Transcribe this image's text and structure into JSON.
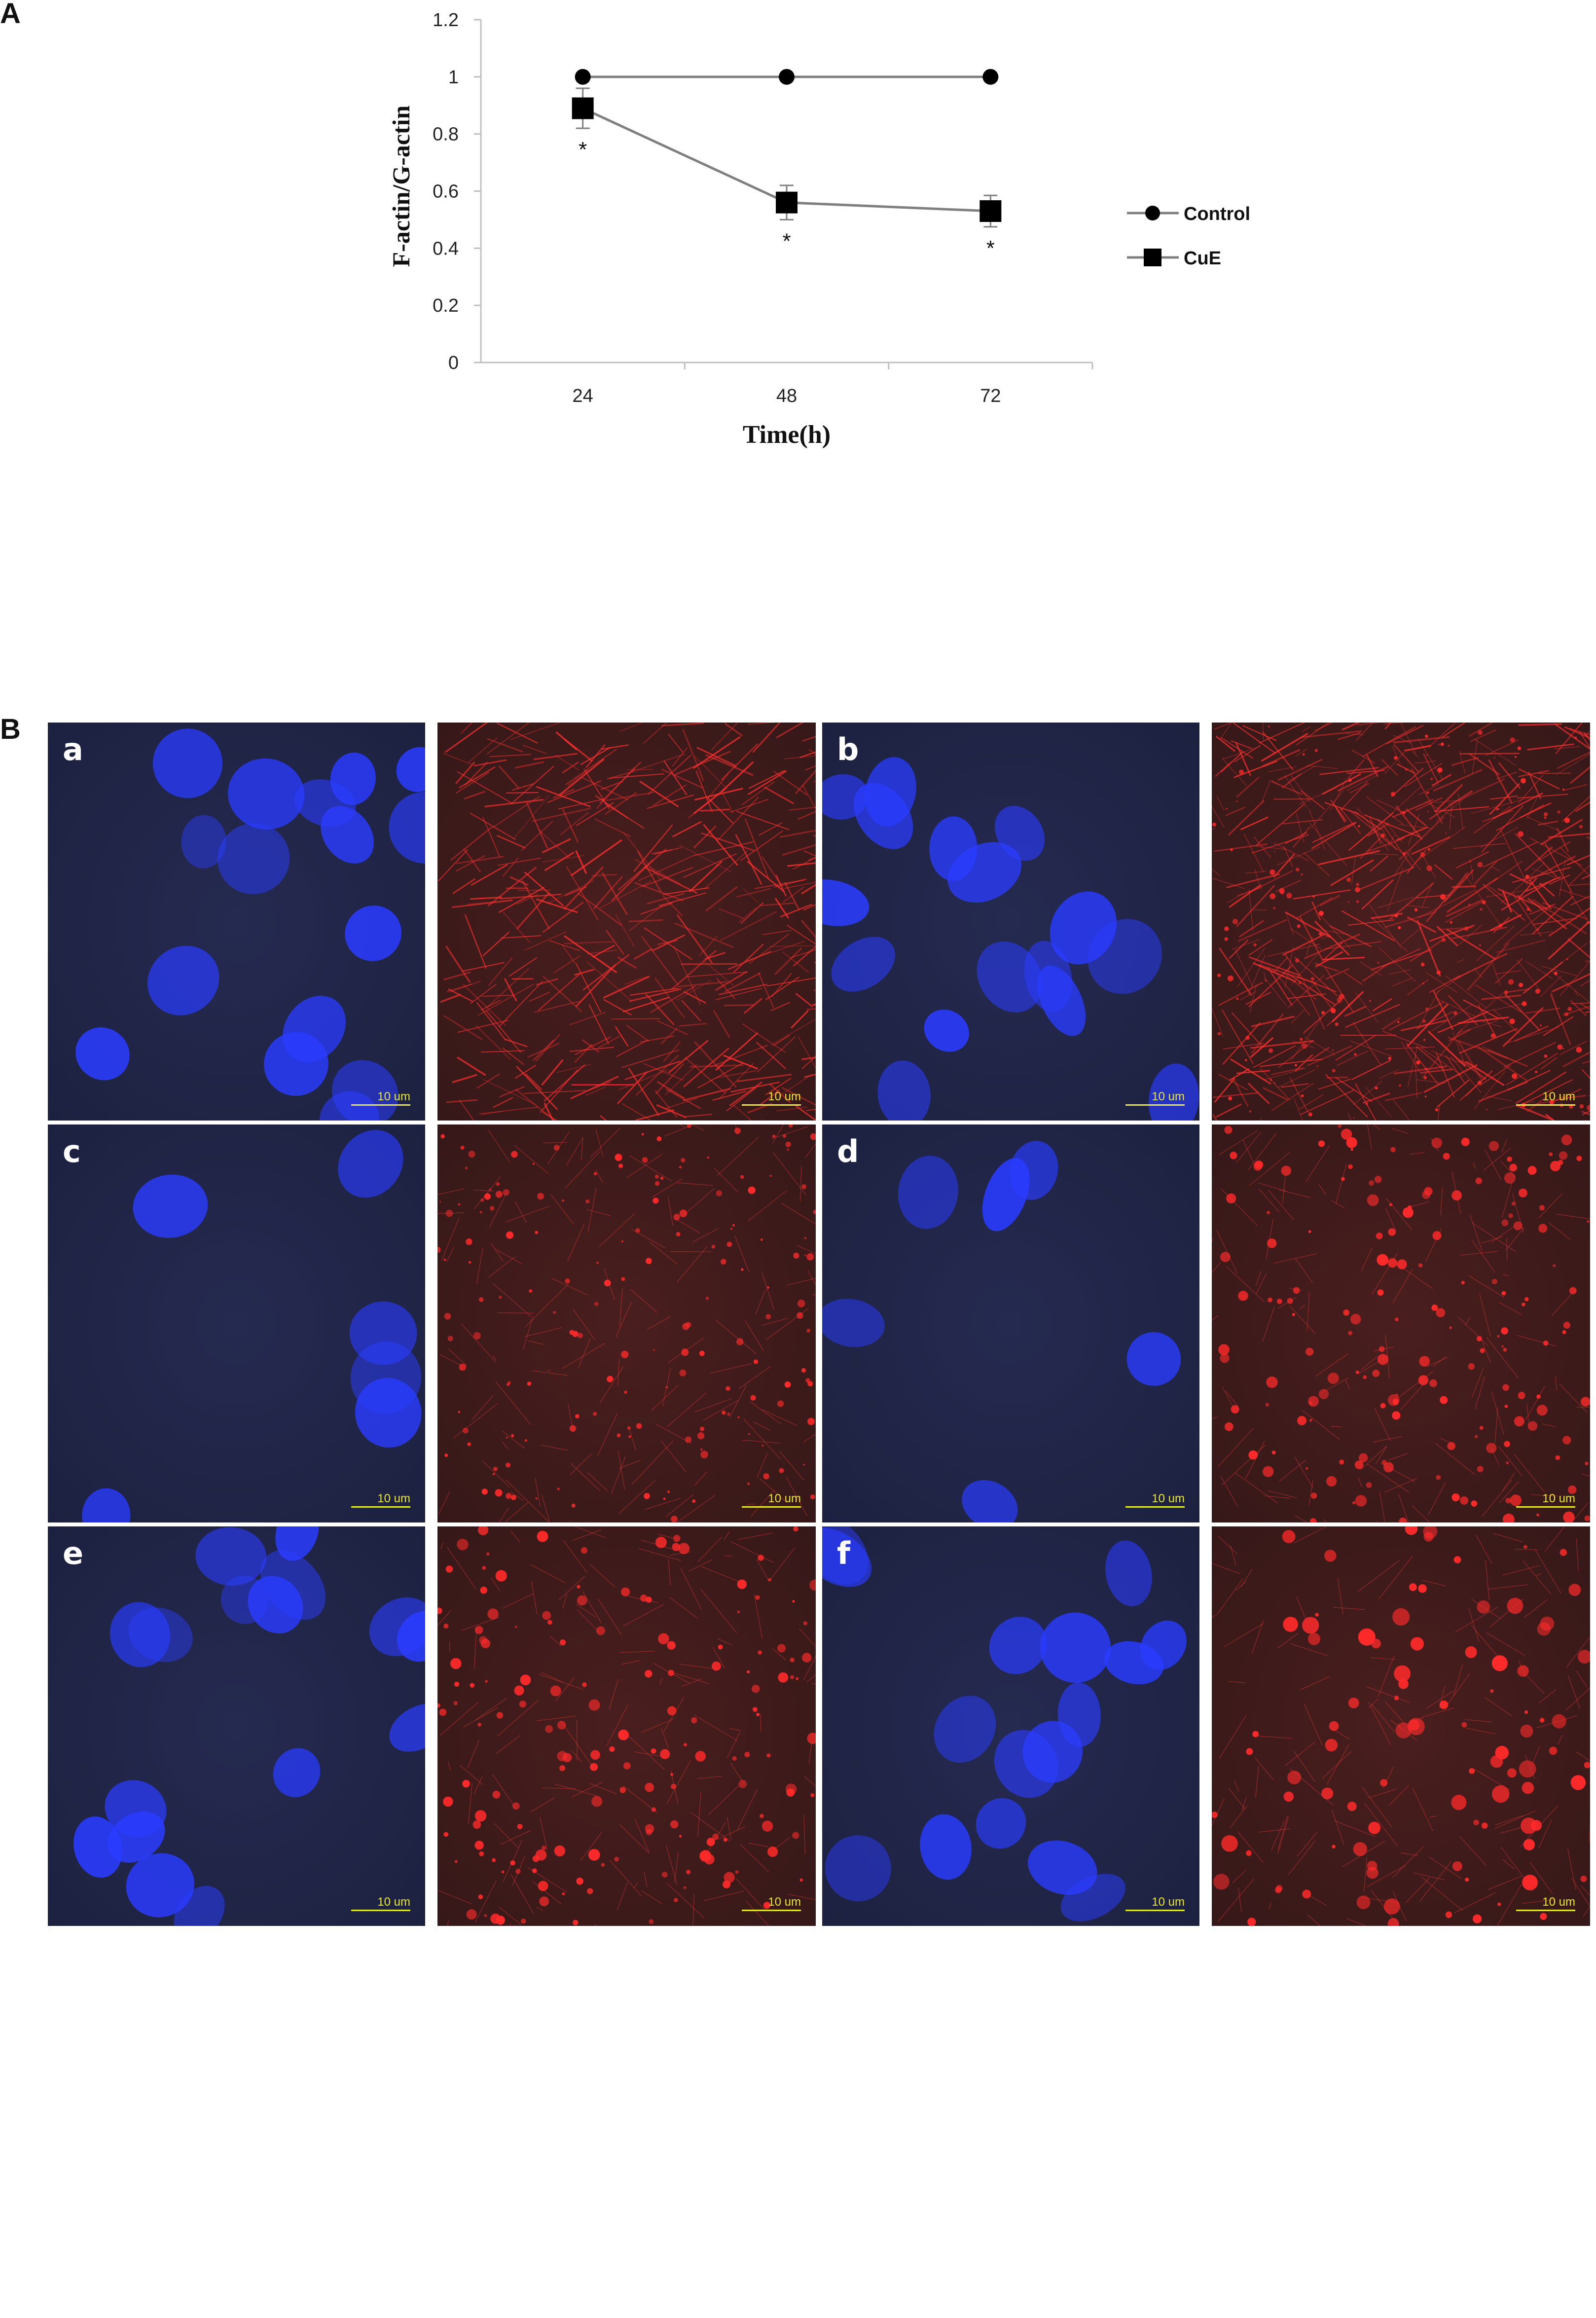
{
  "panel_labels": {
    "a": "A",
    "b": "B"
  },
  "chart_data": {
    "type": "line",
    "categories": [
      "24",
      "48",
      "72"
    ],
    "xlabel": "Time(h)",
    "ylabel": "F-actin/G-actin",
    "ylim": [
      0,
      1.2
    ],
    "yticks": [
      "0",
      "0.2",
      "0.4",
      "0.6",
      "0.8",
      "1",
      "1.2"
    ],
    "grid": false,
    "legend_position": "right",
    "series": [
      {
        "name": "Control",
        "marker": "circle",
        "values": [
          1.0,
          1.0,
          1.0
        ],
        "errors": [
          0,
          0,
          0
        ],
        "significance": [
          "",
          "",
          ""
        ]
      },
      {
        "name": "CuE",
        "marker": "square",
        "values": [
          0.89,
          0.56,
          0.53
        ],
        "errors": [
          0.07,
          0.06,
          0.055
        ],
        "significance": [
          "*",
          "*",
          "*"
        ]
      }
    ],
    "colors": {
      "line": "#7f7f7f",
      "marker": "#000000",
      "axis": "#bfbfbf"
    }
  },
  "micrographs": {
    "scale_label": "10 um",
    "pairs": [
      {
        "label": "a"
      },
      {
        "label": "b"
      },
      {
        "label": "c"
      },
      {
        "label": "d"
      },
      {
        "label": "e"
      },
      {
        "label": "f"
      }
    ],
    "colors": {
      "nucleus": "#2a3cff",
      "actin": "#ff2a2a"
    }
  }
}
